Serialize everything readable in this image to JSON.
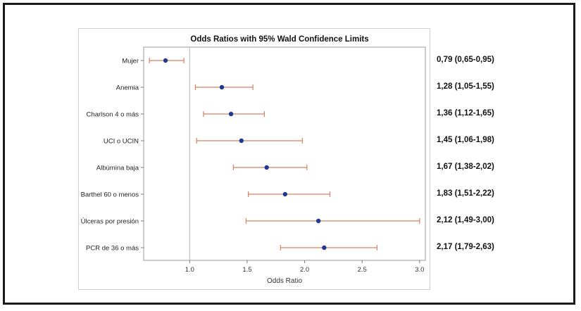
{
  "chart_data": {
    "type": "forest",
    "title": "Odds Ratios with 95% Wald Confidence Limits",
    "xlabel": "Odds Ratio",
    "ylabel": "",
    "xlim": [
      0.6,
      3.05
    ],
    "xticks": [
      1.0,
      1.5,
      2.0,
      2.5,
      3.0
    ],
    "xtick_labels": [
      "1.0",
      "1.5",
      "2.0",
      "2.5",
      "3.0"
    ],
    "reference_line": 1.0,
    "grid": false,
    "point_color": "#1f3a93",
    "ci_color": "#d98060",
    "categories": [
      "Mujer",
      "Anemia",
      "Charlson 4 o más",
      "UCI o UCIN",
      "Albúmina baja",
      "Barthel 60 o menos",
      "Úlceras por presión",
      "PCR de 36 o más"
    ],
    "or": [
      0.79,
      1.28,
      1.36,
      1.45,
      1.67,
      1.83,
      2.12,
      2.17
    ],
    "lower": [
      0.65,
      1.05,
      1.12,
      1.06,
      1.38,
      1.51,
      1.49,
      1.79
    ],
    "upper": [
      0.95,
      1.55,
      1.65,
      1.98,
      2.02,
      2.22,
      3.0,
      2.63
    ],
    "annotations": [
      "0,79 (0,65-0,95)",
      "1,28 (1,05-1,55)",
      "1,36 (1,12-1,65)",
      "1,45 (1,06-1,98)",
      "1,67 (1,38-2,02)",
      "1,83 (1,51-2,22)",
      "2,12 (1,49-3,00)",
      "2,17 (1,79-2,63)"
    ]
  }
}
